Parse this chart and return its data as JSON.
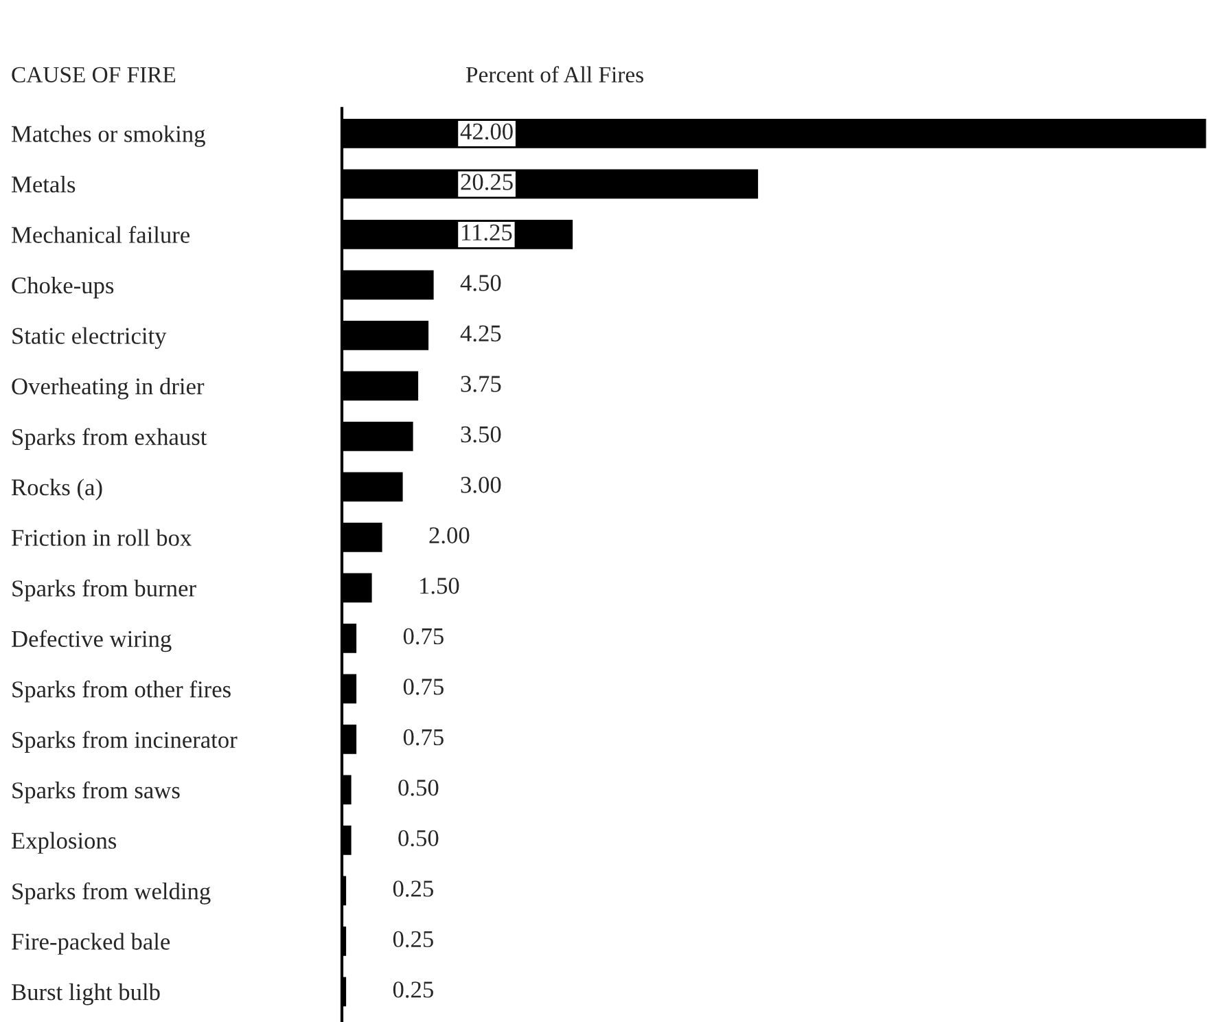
{
  "chart_data": {
    "type": "bar",
    "orientation": "horizontal",
    "xlabel": "Percent of All Fires",
    "ylabel": "CAUSE OF FIRE",
    "categories": [
      "Matches or smoking",
      "Metals",
      "Mechanical failure",
      "Choke-ups",
      "Static electricity",
      "Overheating in drier",
      "Sparks from exhaust",
      "Rocks (a)",
      "Friction in roll box",
      "Sparks from burner",
      "Defective wiring",
      "Sparks from other fires",
      "Sparks from incinerator",
      "Sparks from saws",
      "Explosions",
      "Sparks from welding",
      "Fire-packed bale",
      "Burst light bulb"
    ],
    "values": [
      42.0,
      20.25,
      11.25,
      4.5,
      4.25,
      3.75,
      3.5,
      3.0,
      2.0,
      1.5,
      0.75,
      0.75,
      0.75,
      0.5,
      0.5,
      0.25,
      0.25,
      0.25
    ],
    "value_labels": [
      "42.00",
      "20.25",
      "11.25",
      "4.50",
      "4.25",
      "3.75",
      "3.50",
      "3.00",
      "2.00",
      "1.50",
      "0.75",
      "0.75",
      "0.75",
      "0.50",
      "0.50",
      "0.25",
      "0.25",
      "0.25"
    ],
    "color": "#000000",
    "xlim": [
      0,
      42
    ],
    "tick_labels": "y",
    "grid": false,
    "legend": false
  }
}
